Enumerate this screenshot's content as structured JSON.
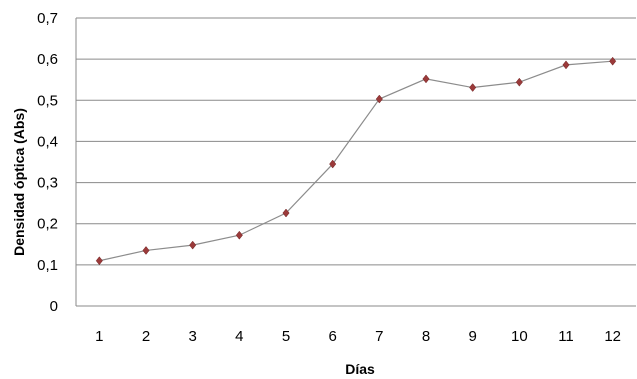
{
  "chart_data": {
    "type": "line",
    "title": "",
    "xlabel": "Días",
    "ylabel": "Densidad óptica (Abs)",
    "categories": [
      "1",
      "2",
      "3",
      "4",
      "5",
      "6",
      "7",
      "8",
      "9",
      "10",
      "11",
      "12"
    ],
    "y_ticks": [
      "0",
      "0,1",
      "0,2",
      "0,3",
      "0,4",
      "0,5",
      "0,6",
      "0,7"
    ],
    "ylim": [
      0,
      0.7
    ],
    "grid": true,
    "legend": "none",
    "series": [
      {
        "values": [
          0.11,
          0.135,
          0.148,
          0.172,
          0.226,
          0.345,
          0.503,
          0.552,
          0.531,
          0.544,
          0.586,
          0.595
        ],
        "line_color": "#8c8c8c",
        "marker_color": "#9b3a3a",
        "marker": "diamond"
      }
    ],
    "gridline_color": "#8a8a8a"
  }
}
